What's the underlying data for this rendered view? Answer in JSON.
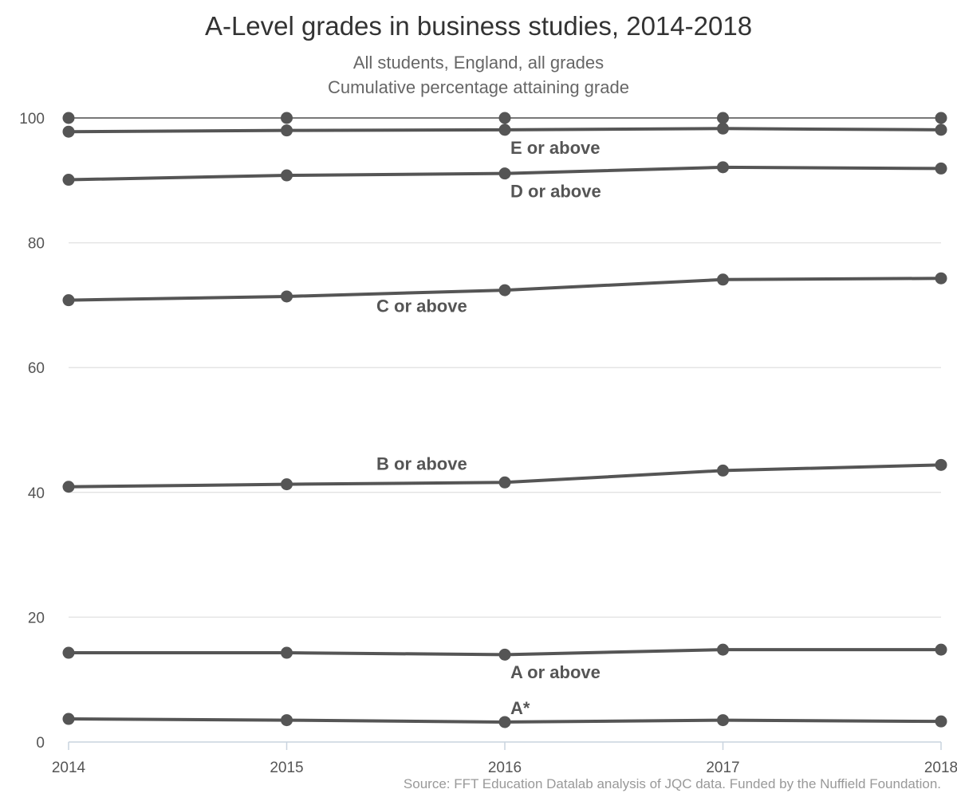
{
  "title": "A-Level grades in business studies, 2014-2018",
  "subtitle_lines": [
    "All students, England, all grades",
    "Cumulative percentage attaining grade"
  ],
  "source": "Source: FFT Education Datalab analysis of JQC data. Funded by the Nuffield Foundation.",
  "chart_data": {
    "type": "line",
    "title": "A-Level grades in business studies, 2014-2018",
    "xlabel": "",
    "ylabel": "",
    "x": [
      2014,
      2015,
      2016,
      2017,
      2018
    ],
    "ylim": [
      0,
      100
    ],
    "yticks": [
      0,
      20,
      40,
      60,
      80,
      100
    ],
    "grid": "horizontal",
    "legend": "none (direct labels)",
    "line_color": "#555555",
    "series": [
      {
        "name": "",
        "values": [
          100,
          100,
          100,
          100,
          100
        ]
      },
      {
        "name": "E or above",
        "values": [
          97.8,
          98.0,
          98.1,
          98.3,
          98.1
        ]
      },
      {
        "name": "D or above",
        "values": [
          90.1,
          90.8,
          91.1,
          92.1,
          91.9
        ]
      },
      {
        "name": "C or above",
        "values": [
          70.8,
          71.4,
          72.4,
          74.1,
          74.3
        ]
      },
      {
        "name": "B or above",
        "values": [
          40.9,
          41.3,
          41.6,
          43.5,
          44.4
        ]
      },
      {
        "name": "A or above",
        "values": [
          14.3,
          14.3,
          14.0,
          14.8,
          14.8
        ]
      },
      {
        "name": "A*",
        "values": [
          3.7,
          3.5,
          3.2,
          3.5,
          3.3
        ]
      }
    ]
  }
}
